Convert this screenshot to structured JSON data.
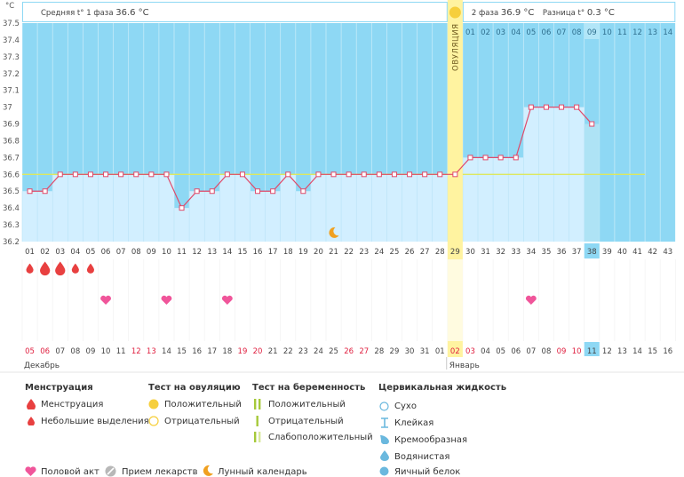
{
  "chart_data": {
    "type": "line",
    "ylabel": "°C",
    "ylim": [
      36.2,
      37.5
    ],
    "y_ticks": [
      "37.5",
      "37.4",
      "37.3",
      "37.2",
      "37.1",
      "37",
      "36.9",
      "36.8",
      "36.7",
      "36.6",
      "36.5",
      "36.4",
      "36.3",
      "36.2"
    ],
    "phase1_label": "Средняя t° 1 фаза",
    "phase1_value": "36.6 °C",
    "phase2_label": "2 фаза",
    "phase2_value": "36.9 °C",
    "diff_label": "Разница t°",
    "diff_value": "0.3 °C",
    "ovulation_label": "ОВУЛЯЦИЯ",
    "coverline": 36.6,
    "ovulation_day": 29,
    "cycle_days": [
      "01",
      "02",
      "03",
      "04",
      "05",
      "06",
      "07",
      "08",
      "09",
      "10",
      "11",
      "12",
      "13",
      "14",
      "15",
      "16",
      "17",
      "18",
      "19",
      "20",
      "21",
      "22",
      "23",
      "24",
      "25",
      "26",
      "27",
      "28",
      "29",
      "30",
      "31",
      "32",
      "33",
      "34",
      "35",
      "36",
      "37",
      "38",
      "39",
      "40",
      "41",
      "42",
      "43"
    ],
    "current_day": 38,
    "temperatures": [
      36.5,
      36.5,
      36.6,
      36.6,
      36.6,
      36.6,
      36.6,
      36.6,
      36.6,
      36.6,
      36.4,
      36.5,
      36.5,
      36.6,
      36.6,
      36.5,
      36.5,
      36.6,
      36.5,
      36.6,
      36.6,
      36.6,
      36.6,
      36.6,
      36.6,
      36.6,
      36.6,
      36.6,
      36.6,
      36.7,
      36.7,
      36.7,
      36.7,
      37.0,
      37.0,
      37.0,
      37.0,
      36.9
    ],
    "phase2_days": [
      "01",
      "02",
      "03",
      "04",
      "05",
      "06",
      "07",
      "08",
      "09",
      "10",
      "11",
      "12",
      "13",
      "14"
    ],
    "phase2_current": "09",
    "calendar_dates": [
      "05",
      "06",
      "07",
      "08",
      "09",
      "10",
      "11",
      "12",
      "13",
      "14",
      "15",
      "16",
      "17",
      "18",
      "19",
      "20",
      "21",
      "22",
      "23",
      "24",
      "25",
      "26",
      "27",
      "28",
      "29",
      "30",
      "31",
      "01",
      "02",
      "03",
      "04",
      "05",
      "06",
      "07",
      "08",
      "09",
      "10",
      "11",
      "12",
      "13",
      "14",
      "15",
      "16"
    ],
    "calendar_red": [
      1,
      2,
      8,
      9,
      15,
      16,
      22,
      23,
      29,
      30,
      36,
      37
    ],
    "month1": "Декабрь",
    "month2": "Январь",
    "menstruation": [
      {
        "day": 1,
        "type": "small"
      },
      {
        "day": 2,
        "type": "big"
      },
      {
        "day": 3,
        "type": "big"
      },
      {
        "day": 4,
        "type": "small"
      },
      {
        "day": 5,
        "type": "small"
      }
    ],
    "intercourse_days": [
      6,
      10,
      14,
      34
    ],
    "moon_day": 21
  },
  "legend": {
    "menstruation": {
      "title": "Менструация",
      "items": [
        "Менструация",
        "Небольшие выделения"
      ]
    },
    "ovulation_test": {
      "title": "Тест на овуляцию",
      "items": [
        "Положительный",
        "Отрицательный"
      ]
    },
    "pregnancy_test": {
      "title": "Тест на беременность",
      "items": [
        "Положительный",
        "Отрицательный",
        "Слабоположительный"
      ]
    },
    "cervical": {
      "title": "Цервикальная жидкость",
      "items": [
        "Сухо",
        "Клейкая",
        "Кремообразная",
        "Водянистая",
        "Яичный белок"
      ]
    },
    "bottom": [
      "Половой акт",
      "Прием лекарств",
      "Лунный календарь"
    ]
  },
  "colors": {
    "plot_bg": "#8ed8f4",
    "bar_fill": "#d2efff",
    "bar_current": "#aee3f5",
    "line": "#e04a6a",
    "ovulation": "#fff3a0",
    "coverline": "#dde860",
    "drop": "#e84040",
    "heart": "#f0559a",
    "moon": "#f0a020",
    "red_text": "#e02040"
  }
}
